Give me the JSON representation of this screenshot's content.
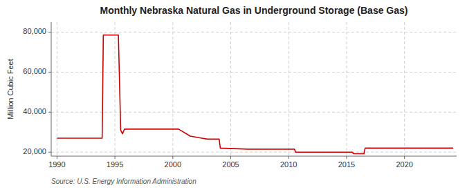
{
  "chart_data": {
    "type": "line",
    "title": "Monthly Nebraska Natural Gas in Underground Storage (Base Gas)",
    "ylabel": "Million Cubic Feet",
    "source": "Source: U.S. Energy Information Administration",
    "color": "#cc0000",
    "x": [
      1990.0,
      1993.9,
      1994.0,
      1995.3,
      1995.5,
      1995.65,
      1995.83,
      2000.5,
      2001.5,
      2002.5,
      2003.0,
      2004.0,
      2004.1,
      2006.5,
      2010.5,
      2010.6,
      2015.5,
      2015.6,
      2016.5,
      2016.6,
      2024.2
    ],
    "values": [
      27000,
      27000,
      78500,
      78500,
      31000,
      29200,
      31500,
      31500,
      28000,
      27000,
      26500,
      26500,
      22000,
      21500,
      21500,
      20000,
      20000,
      19200,
      19200,
      22000,
      22000
    ],
    "xlim": [
      1989.5,
      2024.5
    ],
    "ylim": [
      18000,
      85000
    ],
    "xticks": [
      1990,
      1995,
      2000,
      2005,
      2010,
      2015,
      2020
    ],
    "yticks": [
      {
        "value": 20000,
        "label": "20,000"
      },
      {
        "value": 40000,
        "label": "40,000"
      },
      {
        "value": 60000,
        "label": "60,000"
      },
      {
        "value": 80000,
        "label": "80,000"
      }
    ],
    "grid": true
  }
}
